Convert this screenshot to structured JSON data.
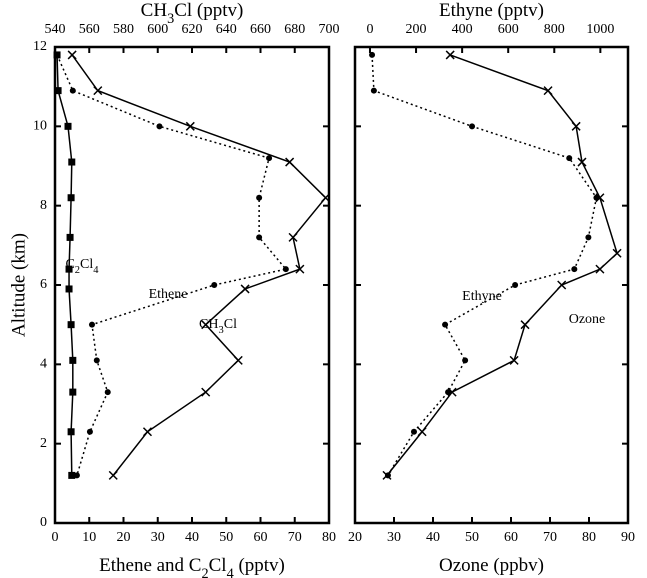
{
  "chart_data": [
    {
      "type": "line",
      "ylabel": "Altitude (km)",
      "xlabel": "Ethene and C2Cl4 (pptv)",
      "x2label": "CH3Cl (pptv)",
      "xlim": [
        0,
        80
      ],
      "xticks": [
        0,
        10,
        20,
        30,
        40,
        50,
        60,
        70,
        80
      ],
      "x2lim": [
        540,
        700
      ],
      "x2ticks": [
        540,
        560,
        580,
        600,
        620,
        640,
        660,
        680,
        700
      ],
      "ylim": [
        0,
        12
      ],
      "yticks": [
        0,
        2,
        4,
        6,
        8,
        10,
        12
      ],
      "series": [
        {
          "name": "CH3Cl",
          "color": "#000000",
          "axis": "x2",
          "marker": "x",
          "dash": "solid",
          "x": [
            550,
            565,
            619,
            677,
            698,
            679,
            683,
            651,
            628,
            647,
            628,
            594,
            574
          ],
          "y": [
            11.8,
            10.9,
            10.0,
            9.1,
            8.2,
            7.2,
            6.4,
            5.9,
            5.0,
            4.1,
            3.3,
            2.3,
            1.2
          ]
        },
        {
          "name": "Ethene",
          "color": "#000000",
          "axis": "x",
          "marker": "circle",
          "dash": "dotted",
          "x": [
            0.6,
            5.2,
            30.5,
            62.5,
            59.6,
            59.6,
            67.4,
            46.5,
            10.8,
            12.2,
            15.4,
            10.2,
            6.4
          ],
          "y": [
            11.8,
            10.9,
            10.0,
            9.2,
            8.2,
            7.2,
            6.4,
            6.0,
            5.0,
            4.1,
            3.3,
            2.3,
            1.2
          ]
        },
        {
          "name": "C2Cl4",
          "color": "#000000",
          "axis": "x",
          "marker": "square",
          "dash": "solid",
          "x": [
            0.6,
            0.9,
            3.8,
            4.9,
            4.7,
            4.4,
            4.1,
            4.1,
            4.7,
            5.2,
            5.2,
            4.7,
            4.9
          ],
          "y": [
            11.8,
            10.9,
            10.0,
            9.1,
            8.2,
            7.2,
            6.4,
            5.9,
            5.0,
            4.1,
            3.3,
            2.3,
            1.2
          ]
        }
      ]
    },
    {
      "type": "line",
      "xlabel": "Ozone (ppbv)",
      "x2label": "Ethyne (pptv)",
      "xlim": [
        20,
        90
      ],
      "xticks": [
        20,
        30,
        40,
        50,
        60,
        70,
        80,
        90
      ],
      "x2lim": [
        -65,
        1120
      ],
      "x2ticks": [
        0,
        200,
        400,
        600,
        800,
        1000
      ],
      "ylim": [
        0,
        12
      ],
      "yticks": [
        0,
        2,
        4,
        6,
        8,
        10,
        12
      ],
      "series": [
        {
          "name": "Ozone",
          "color": "#000000",
          "axis": "x",
          "marker": "x",
          "dash": "solid",
          "x": [
            44.4,
            69.5,
            76.7,
            78.2,
            82.8,
            87.2,
            82.8,
            73,
            63.6,
            60.8,
            44.9,
            37.2,
            28.2
          ],
          "y": [
            11.8,
            10.9,
            10.0,
            9.1,
            8.2,
            6.8,
            6.4,
            6.0,
            5.0,
            4.1,
            3.3,
            2.3,
            1.2
          ]
        },
        {
          "name": "Ethyne",
          "color": "#000000",
          "axis": "x2",
          "marker": "circle",
          "dash": "dotted",
          "x": [
            9,
            17,
            443,
            865,
            983,
            948,
            887,
            630,
            326,
            413,
            339,
            191,
            78
          ],
          "y": [
            11.8,
            10.9,
            10.0,
            9.2,
            8.2,
            7.2,
            6.4,
            6.0,
            5.0,
            4.1,
            3.3,
            2.3,
            1.2
          ]
        }
      ]
    }
  ]
}
